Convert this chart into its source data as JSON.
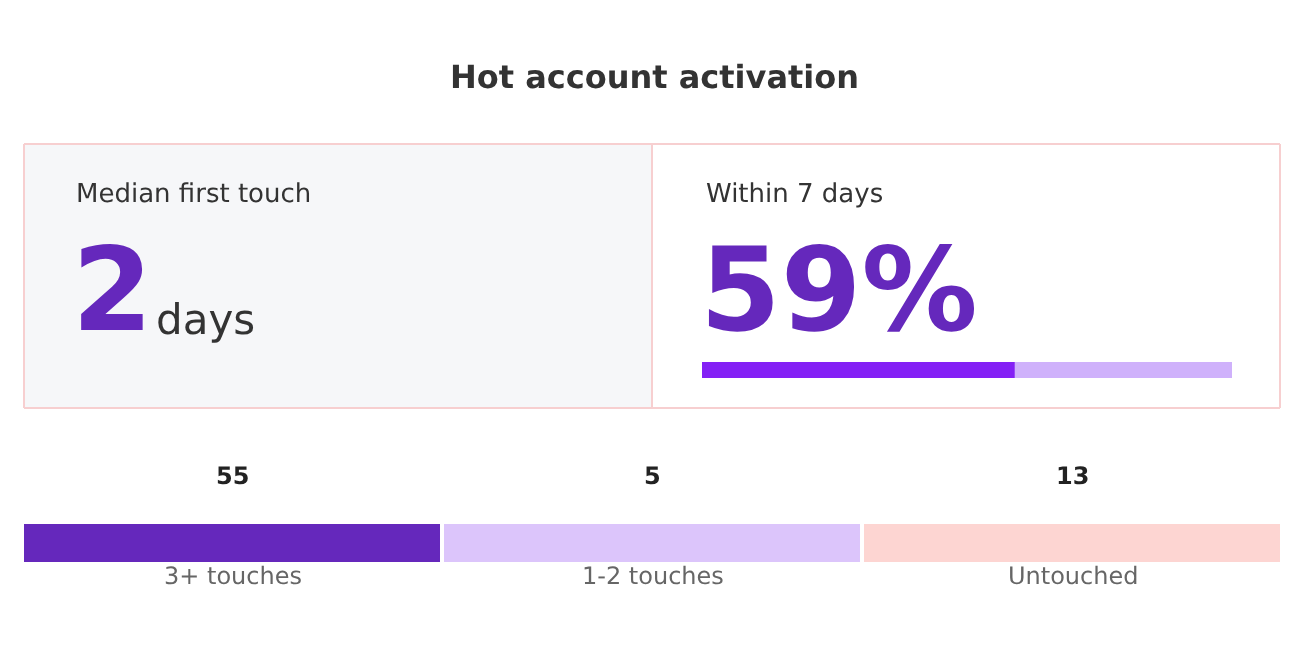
{
  "chart_data": [
    {
      "type": "other",
      "title": "Hot account activation",
      "annotations": [
        "Median first touch",
        "2",
        "days"
      ]
    },
    {
      "type": "other",
      "title": "Within 7 days",
      "values": [
        59
      ],
      "color": "#8420f5",
      "value_labels": [
        "59%"
      ]
    },
    {
      "type": "other",
      "categories": [
        "3+ touches",
        "1-2 touches",
        "Untouched"
      ],
      "values": [
        55,
        5,
        13
      ],
      "colors": [
        "#6528bc",
        "#dcc5fb",
        "#fdd5d2"
      ],
      "data_labels": true
    }
  ]
}
